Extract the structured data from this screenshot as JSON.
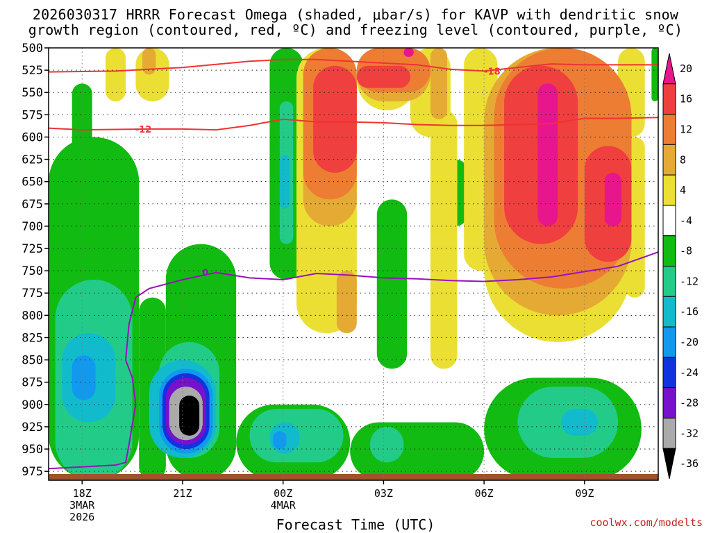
{
  "chart_data": {
    "type": "heatmap",
    "title_line1": "2026030317 HRRR Forecast Omega (shaded, μbar/s) for KAVP with dendritic snow",
    "title_line2": "growth region (contoured, red, ºC) and freezing level (contoured, purple, ºC)",
    "xlabel": "Forecast Time (UTC)",
    "credit": "coolwx.com/modelts",
    "x_range_hours": [
      -1,
      17.2
    ],
    "y_range_hpa": [
      500,
      985
    ],
    "y_ticks": [
      500,
      525,
      550,
      575,
      600,
      625,
      650,
      675,
      700,
      725,
      750,
      775,
      800,
      825,
      850,
      875,
      900,
      925,
      950,
      975
    ],
    "x_ticks": [
      {
        "hour": 0,
        "lines": [
          "18Z",
          "3MAR",
          "2026"
        ]
      },
      {
        "hour": 3,
        "lines": [
          "21Z"
        ]
      },
      {
        "hour": 6,
        "lines": [
          "00Z",
          "4MAR"
        ]
      },
      {
        "hour": 9,
        "lines": [
          "03Z"
        ]
      },
      {
        "hour": 12,
        "lines": [
          "06Z"
        ]
      },
      {
        "hour": 15,
        "lines": [
          "09Z"
        ]
      }
    ],
    "colorbar": {
      "labels": [
        "20",
        "16",
        "12",
        "8",
        "4",
        "-4",
        "-8",
        "-12",
        "-16",
        "-20",
        "-24",
        "-28",
        "-32",
        "-36"
      ],
      "colors": [
        "#e8168c",
        "#ef3f3f",
        "#ee7d34",
        "#e5aa33",
        "#ebdf33",
        "#ffffff",
        "#11bb11",
        "#22cc88",
        "#11bbcc",
        "#1199ee",
        "#1133dd",
        "#7711cc",
        "#aaaaaa",
        "#000000"
      ]
    },
    "isotherms": [
      {
        "label": "-18",
        "color": "#ee3333",
        "x": [
          -1,
          1,
          3,
          5,
          6,
          7,
          8,
          9,
          10,
          11,
          12,
          13,
          14,
          15,
          16,
          17.2
        ],
        "p": [
          527,
          526,
          522,
          515,
          513,
          513,
          515,
          517,
          519,
          524,
          526,
          522,
          518,
          519,
          519,
          519
        ]
      },
      {
        "label": "-12",
        "color": "#ee3333",
        "x": [
          -1,
          0,
          2,
          3,
          4,
          5,
          6,
          7,
          8,
          9,
          10,
          11,
          12,
          13,
          14,
          15,
          16,
          17.2
        ],
        "p": [
          590,
          592,
          591,
          591,
          592,
          587,
          580,
          583,
          583,
          584,
          586,
          587,
          587,
          586,
          585,
          579,
          579,
          578
        ]
      },
      {
        "label": "0",
        "color": "#9911bb",
        "x": [
          -1,
          0,
          1,
          1.3,
          1.4,
          1.6,
          1.5,
          1.3,
          1.4,
          1.6,
          2,
          3,
          4,
          5,
          6,
          7,
          8,
          9,
          10,
          11,
          12,
          13,
          14,
          15,
          16,
          17.2
        ],
        "p": [
          972,
          970,
          968,
          965,
          945,
          900,
          870,
          850,
          810,
          780,
          770,
          760,
          752,
          758,
          760,
          753,
          755,
          758,
          759,
          761,
          762,
          760,
          757,
          751,
          745,
          729
        ]
      }
    ],
    "omega_cells": [
      {
        "x": [
          -1,
          1.7
        ],
        "p": [
          600,
          985
        ],
        "v": -8
      },
      {
        "x": [
          -0.3,
          0.3
        ],
        "p": [
          540,
          620
        ],
        "v": -8
      },
      {
        "x": [
          1.7,
          2.5
        ],
        "p": [
          780,
          985
        ],
        "v": -8
      },
      {
        "x": [
          2.5,
          4.6
        ],
        "p": [
          720,
          985
        ],
        "v": -8
      },
      {
        "x": [
          4.6,
          8
        ],
        "p": [
          900,
          985
        ],
        "v": -8
      },
      {
        "x": [
          8,
          12
        ],
        "p": [
          920,
          985
        ],
        "v": -8
      },
      {
        "x": [
          12,
          16.7
        ],
        "p": [
          870,
          985
        ],
        "v": -8
      },
      {
        "x": [
          5.6,
          6.6
        ],
        "p": [
          500,
          760
        ],
        "v": -8
      },
      {
        "x": [
          8.8,
          9.7
        ],
        "p": [
          670,
          860
        ],
        "v": -8
      },
      {
        "x": [
          10.8,
          11.5
        ],
        "p": [
          625,
          700
        ],
        "v": -8
      },
      {
        "x": [
          17,
          17.2
        ],
        "p": [
          500,
          560
        ],
        "v": -8
      },
      {
        "x": [
          -0.8,
          1.5
        ],
        "p": [
          760,
          985
        ],
        "v": -12
      },
      {
        "x": [
          2.3,
          4.1
        ],
        "p": [
          830,
          960
        ],
        "v": -12
      },
      {
        "x": [
          5.9,
          6.3
        ],
        "p": [
          560,
          720
        ],
        "v": -12
      },
      {
        "x": [
          5,
          7.8
        ],
        "p": [
          905,
          965
        ],
        "v": -12
      },
      {
        "x": [
          8.6,
          9.6
        ],
        "p": [
          925,
          965
        ],
        "v": -12
      },
      {
        "x": [
          13,
          16
        ],
        "p": [
          880,
          960
        ],
        "v": -12
      },
      {
        "x": [
          -0.6,
          1
        ],
        "p": [
          820,
          920
        ],
        "v": -16
      },
      {
        "x": [
          2,
          4
        ],
        "p": [
          850,
          960
        ],
        "v": -16
      },
      {
        "x": [
          5.9,
          6.2
        ],
        "p": [
          620,
          680
        ],
        "v": -16
      },
      {
        "x": [
          5.6,
          6.5
        ],
        "p": [
          920,
          955
        ],
        "v": -16
      },
      {
        "x": [
          14.3,
          15.4
        ],
        "p": [
          905,
          935
        ],
        "v": -16
      },
      {
        "x": [
          -0.3,
          0.4
        ],
        "p": [
          845,
          895
        ],
        "v": -20
      },
      {
        "x": [
          2.3,
          3.9
        ],
        "p": [
          860,
          955
        ],
        "v": -20
      },
      {
        "x": [
          5.7,
          6.1
        ],
        "p": [
          930,
          950
        ],
        "v": -20
      },
      {
        "x": [
          2.4,
          3.8
        ],
        "p": [
          865,
          950
        ],
        "v": -24
      },
      {
        "x": [
          2.5,
          3.7
        ],
        "p": [
          870,
          945
        ],
        "v": -28
      },
      {
        "x": [
          2.6,
          3.6
        ],
        "p": [
          880,
          940
        ],
        "v": -32
      },
      {
        "x": [
          2.9,
          3.5
        ],
        "p": [
          890,
          935
        ],
        "v": -36
      },
      {
        "x": [
          0.7,
          1.3
        ],
        "p": [
          500,
          560
        ],
        "v": 4
      },
      {
        "x": [
          1.6,
          2.6
        ],
        "p": [
          500,
          560
        ],
        "v": 4
      },
      {
        "x": [
          6.4,
          8.2
        ],
        "p": [
          500,
          820
        ],
        "v": 4
      },
      {
        "x": [
          8.2,
          10
        ],
        "p": [
          500,
          570
        ],
        "v": 4
      },
      {
        "x": [
          9.8,
          11
        ],
        "p": [
          500,
          600
        ],
        "v": 4
      },
      {
        "x": [
          10.4,
          11.2
        ],
        "p": [
          570,
          860
        ],
        "v": 4
      },
      {
        "x": [
          11.4,
          12.4
        ],
        "p": [
          500,
          750
        ],
        "v": 4
      },
      {
        "x": [
          12,
          16.4
        ],
        "p": [
          500,
          830
        ],
        "v": 4
      },
      {
        "x": [
          16,
          16.8
        ],
        "p": [
          500,
          600
        ],
        "v": 4
      },
      {
        "x": [
          16.2,
          16.8
        ],
        "p": [
          600,
          780
        ],
        "v": 4
      },
      {
        "x": [
          1.8,
          2.2
        ],
        "p": [
          500,
          530
        ],
        "v": 8
      },
      {
        "x": [
          6.6,
          8.2
        ],
        "p": [
          500,
          700
        ],
        "v": 8
      },
      {
        "x": [
          8.2,
          10.4
        ],
        "p": [
          500,
          560
        ],
        "v": 8
      },
      {
        "x": [
          10.4,
          10.9
        ],
        "p": [
          500,
          580
        ],
        "v": 8
      },
      {
        "x": [
          12,
          16.4
        ],
        "p": [
          500,
          800
        ],
        "v": 8
      },
      {
        "x": [
          7.6,
          8.2
        ],
        "p": [
          750,
          820
        ],
        "v": 8
      },
      {
        "x": [
          6.6,
          8.2
        ],
        "p": [
          500,
          670
        ],
        "v": 12
      },
      {
        "x": [
          8.2,
          10.4
        ],
        "p": [
          500,
          550
        ],
        "v": 12
      },
      {
        "x": [
          12.3,
          16.4
        ],
        "p": [
          500,
          770
        ],
        "v": 12
      },
      {
        "x": [
          6.9,
          8.2
        ],
        "p": [
          520,
          640
        ],
        "v": 16
      },
      {
        "x": [
          8.2,
          9.8
        ],
        "p": [
          520,
          545
        ],
        "v": 16
      },
      {
        "x": [
          12.6,
          14.8
        ],
        "p": [
          520,
          720
        ],
        "v": 16
      },
      {
        "x": [
          15,
          16.4
        ],
        "p": [
          610,
          740
        ],
        "v": 16
      },
      {
        "x": [
          9.6,
          9.9
        ],
        "p": [
          500,
          510
        ],
        "v": 20
      },
      {
        "x": [
          13.6,
          14.2
        ],
        "p": [
          540,
          700
        ],
        "v": 20
      },
      {
        "x": [
          15.6,
          16.1
        ],
        "p": [
          640,
          700
        ],
        "v": 20
      }
    ]
  }
}
